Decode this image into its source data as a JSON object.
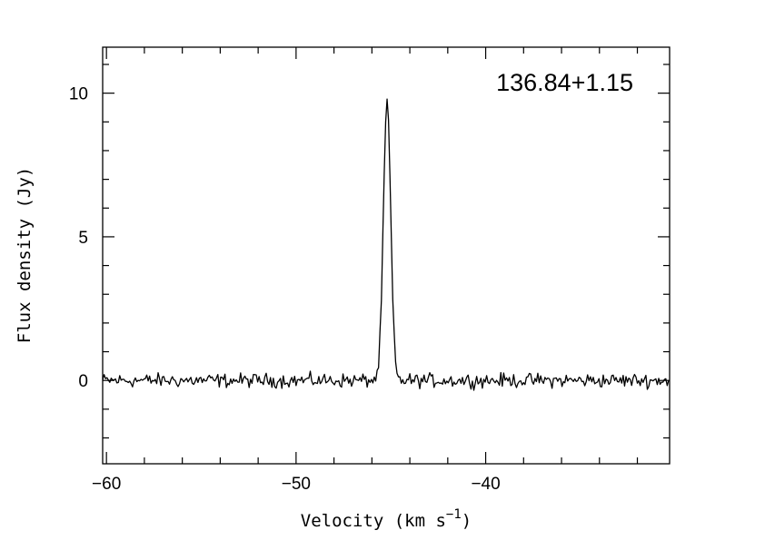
{
  "chart_data": {
    "type": "line",
    "annotation": "136.84+1.15",
    "xlabel": "Velocity (km s",
    "xlabel_sup": "−1",
    "xlabel_close": ")",
    "ylabel": "Flux density (Jy)",
    "xlim": [
      -60.2,
      -30.3
    ],
    "ylim": [
      -2.9,
      11.6
    ],
    "x_ticks": [
      {
        "value": -60,
        "label": "−60"
      },
      {
        "value": -50,
        "label": "−50"
      },
      {
        "value": -40,
        "label": "−40"
      }
    ],
    "y_ticks": [
      {
        "value": 0,
        "label": "0"
      },
      {
        "value": 5,
        "label": "5"
      },
      {
        "value": 10,
        "label": "10"
      }
    ],
    "x_minor_step": 2,
    "y_minor_step": 1,
    "grid": false,
    "noise": {
      "x_start": -60.2,
      "x_end": -30.3,
      "step": 0.075,
      "amplitude": 0.3
    },
    "peak": {
      "velocity": -45.2,
      "flux": 9.7,
      "fwhm": 0.45
    }
  }
}
